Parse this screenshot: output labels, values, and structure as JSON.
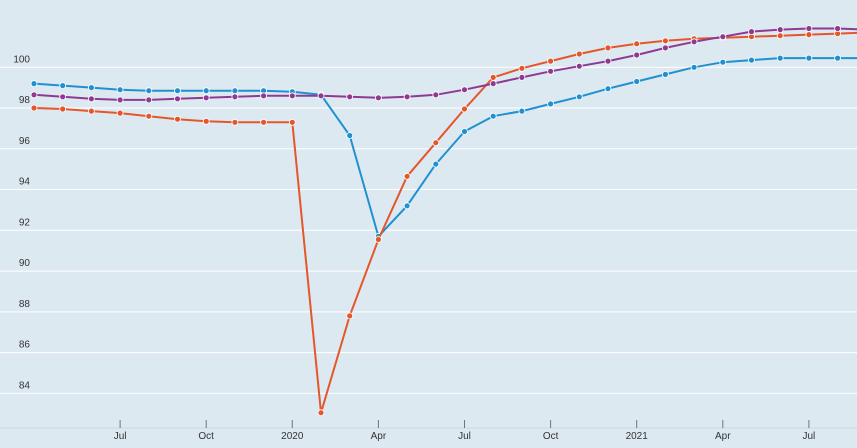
{
  "chart_data": {
    "type": "line",
    "title": "",
    "xlabel": "",
    "ylabel": "",
    "ylim": [
      82.3,
      103.3
    ],
    "yticks": [
      84,
      86,
      88,
      90,
      92,
      94,
      96,
      98,
      100
    ],
    "x_ticks": [
      {
        "date": "2019-07",
        "label": "Jul"
      },
      {
        "date": "2019-10",
        "label": "Oct"
      },
      {
        "date": "2020-01",
        "label": "2020"
      },
      {
        "date": "2020-04",
        "label": "Apr"
      },
      {
        "date": "2020-07",
        "label": "Jul"
      },
      {
        "date": "2020-10",
        "label": "Oct"
      },
      {
        "date": "2021-01",
        "label": "2021"
      },
      {
        "date": "2021-04",
        "label": "Apr"
      },
      {
        "date": "2021-07",
        "label": "Jul"
      }
    ],
    "x": [
      "2019-04",
      "2019-05",
      "2019-06",
      "2019-07",
      "2019-08",
      "2019-09",
      "2019-10",
      "2019-11",
      "2019-12",
      "2020-01",
      "2020-02",
      "2020-03",
      "2020-04",
      "2020-05",
      "2020-06",
      "2020-07",
      "2020-08",
      "2020-09",
      "2020-10",
      "2020-11",
      "2020-12",
      "2021-01",
      "2021-02",
      "2021-03",
      "2021-04",
      "2021-05",
      "2021-06",
      "2021-07",
      "2021-08",
      "2021-09"
    ],
    "grid": true,
    "legend": "none",
    "series": [
      {
        "color": "#1f91d1",
        "values": [
          99.2,
          99.1,
          99.0,
          98.9,
          98.85,
          98.85,
          98.85,
          98.85,
          98.85,
          98.8,
          98.65,
          96.65,
          91.7,
          93.2,
          95.25,
          96.85,
          97.6,
          97.85,
          98.2,
          98.55,
          98.95,
          99.3,
          99.65,
          100.0,
          100.25,
          100.35,
          100.45,
          100.45,
          100.45,
          100.45
        ]
      },
      {
        "color": "#e5562b",
        "values": [
          98.0,
          97.95,
          97.85,
          97.75,
          97.6,
          97.45,
          97.35,
          97.3,
          97.3,
          97.3,
          83.05,
          87.8,
          91.55,
          94.65,
          96.3,
          97.95,
          99.5,
          99.95,
          100.3,
          100.65,
          100.95,
          101.15,
          101.3,
          101.4,
          101.45,
          101.5,
          101.55,
          101.6,
          101.65,
          101.7
        ]
      },
      {
        "color": "#8e3a93",
        "values": [
          98.65,
          98.55,
          98.45,
          98.4,
          98.4,
          98.45,
          98.5,
          98.55,
          98.6,
          98.6,
          98.6,
          98.55,
          98.5,
          98.55,
          98.65,
          98.9,
          99.2,
          99.5,
          99.8,
          100.05,
          100.3,
          100.6,
          100.95,
          101.25,
          101.5,
          101.75,
          101.85,
          101.9,
          101.9,
          101.85
        ]
      }
    ]
  }
}
